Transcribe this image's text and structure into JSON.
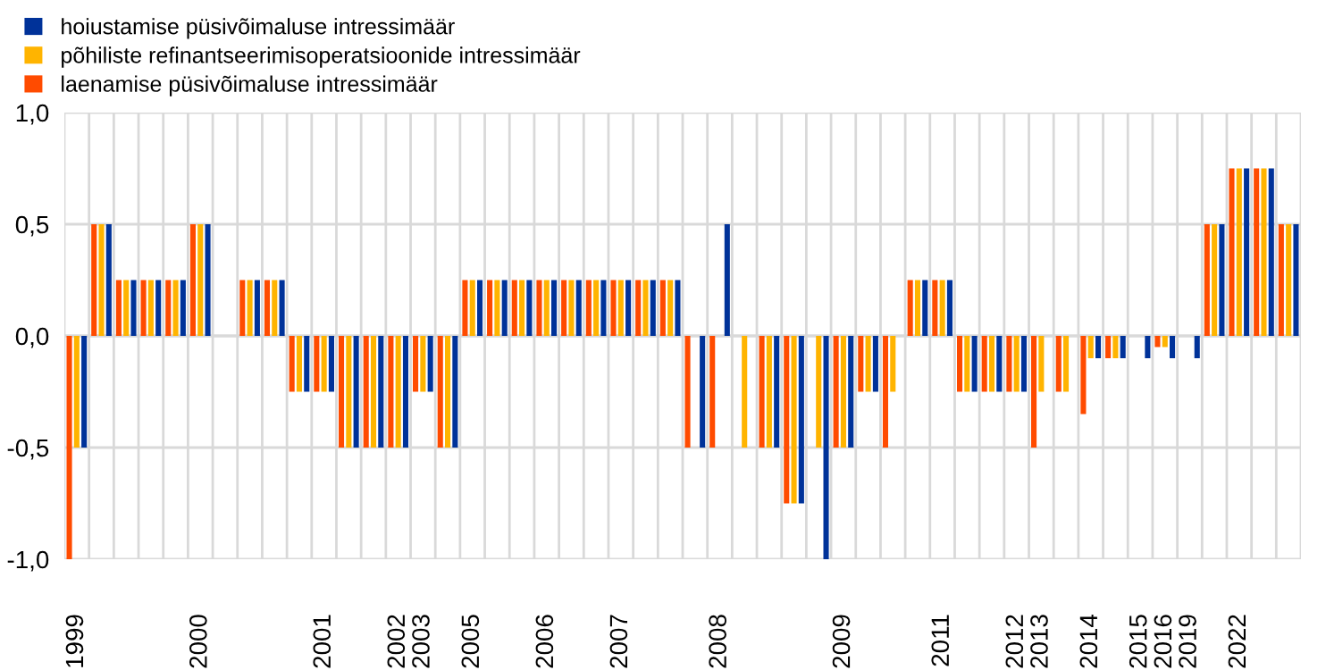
{
  "chart_data": {
    "type": "bar",
    "categories": [
      "1999",
      null,
      null,
      null,
      null,
      "2000",
      null,
      null,
      null,
      null,
      "2001",
      null,
      null,
      "2002",
      "2003",
      null,
      "2005",
      null,
      null,
      "2006",
      null,
      null,
      "2007",
      null,
      null,
      null,
      "2008",
      null,
      null,
      null,
      null,
      "2009",
      null,
      null,
      null,
      "2011",
      null,
      null,
      "2012",
      "2013",
      null,
      "2014",
      null,
      "2015",
      "2016",
      "2019",
      null,
      "2022",
      null,
      null
    ],
    "series": [
      {
        "name": "hoiustamise püsivõimaluse intressimäär",
        "color": "#003299",
        "values": [
          -0.5,
          0.5,
          0.25,
          0.25,
          0.25,
          0.5,
          null,
          0.25,
          0.25,
          -0.25,
          -0.25,
          -0.5,
          -0.5,
          -0.5,
          -0.25,
          -0.5,
          0.25,
          0.25,
          0.25,
          0.25,
          0.25,
          0.25,
          0.25,
          0.25,
          0.25,
          -0.5,
          0.5,
          null,
          -0.5,
          -0.75,
          -1.0,
          -0.5,
          -0.25,
          null,
          0.25,
          0.25,
          -0.25,
          -0.25,
          -0.25,
          null,
          null,
          -0.1,
          -0.1,
          -0.1,
          -0.1,
          -0.1,
          0.5,
          0.75,
          0.75,
          0.5
        ]
      },
      {
        "name": "põhiliste refinantseerimisoperatsioonide intressimäär",
        "color": "#ffb400",
        "values": [
          -0.5,
          0.5,
          0.25,
          0.25,
          0.25,
          0.5,
          null,
          0.25,
          0.25,
          -0.25,
          -0.25,
          -0.5,
          -0.5,
          -0.5,
          -0.25,
          -0.5,
          0.25,
          0.25,
          0.25,
          0.25,
          0.25,
          0.25,
          0.25,
          0.25,
          0.25,
          null,
          null,
          -0.5,
          -0.5,
          -0.75,
          -0.5,
          -0.5,
          -0.25,
          -0.25,
          0.25,
          0.25,
          -0.25,
          -0.25,
          -0.25,
          -0.25,
          -0.25,
          -0.1,
          -0.1,
          null,
          -0.05,
          null,
          0.5,
          0.75,
          0.75,
          0.5
        ]
      },
      {
        "name": "laenamise püsivõimaluse intressimäär",
        "color": "#ff4b00",
        "values": [
          -1.0,
          0.5,
          0.25,
          0.25,
          0.25,
          0.5,
          null,
          0.25,
          0.25,
          -0.25,
          -0.25,
          -0.5,
          -0.5,
          -0.5,
          -0.25,
          -0.5,
          0.25,
          0.25,
          0.25,
          0.25,
          0.25,
          0.25,
          0.25,
          0.25,
          0.25,
          -0.5,
          -0.5,
          null,
          -0.5,
          -0.75,
          null,
          -0.5,
          -0.25,
          -0.5,
          0.25,
          0.25,
          -0.25,
          -0.25,
          -0.25,
          -0.5,
          -0.25,
          -0.35,
          -0.1,
          null,
          -0.05,
          null,
          0.5,
          0.75,
          0.75,
          0.5
        ]
      }
    ],
    "ylim": [
      -1.0,
      1.0
    ],
    "yticks": [
      {
        "value": -1.0,
        "label": "-1,0"
      },
      {
        "value": -0.5,
        "label": "-0,5"
      },
      {
        "value": 0,
        "label": "0,0"
      },
      {
        "value": 0.5,
        "label": "0,5"
      },
      {
        "value": 1.0,
        "label": "1,0"
      }
    ],
    "grid": true,
    "legend": "top left"
  }
}
